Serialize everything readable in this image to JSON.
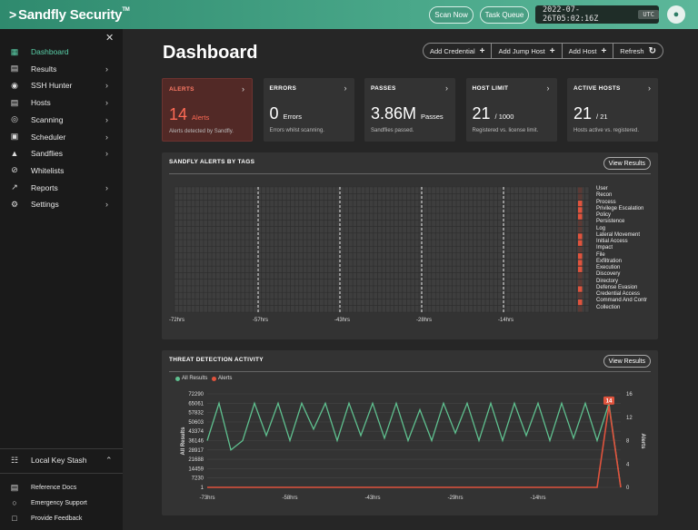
{
  "app": {
    "title": "Sandfly Security",
    "trademark": "TM"
  },
  "topbar": {
    "scan_now": "Scan Now",
    "task_queue": "Task Queue",
    "datetime": "2022-07-26T05:02:16Z",
    "tz": "UTC"
  },
  "sidebar": {
    "items": [
      {
        "label": "Dashboard",
        "icon": "dashboard-icon",
        "active": true
      },
      {
        "label": "Results",
        "icon": "results-icon"
      },
      {
        "label": "SSH Hunter",
        "icon": "ssh-hunter-icon"
      },
      {
        "label": "Hosts",
        "icon": "hosts-icon"
      },
      {
        "label": "Scanning",
        "icon": "scanning-icon"
      },
      {
        "label": "Scheduler",
        "icon": "scheduler-icon"
      },
      {
        "label": "Sandflies",
        "icon": "sandflies-icon"
      },
      {
        "label": "Whitelists",
        "icon": "whitelists-icon"
      },
      {
        "label": "Reports",
        "icon": "reports-icon"
      },
      {
        "label": "Settings",
        "icon": "settings-icon"
      }
    ],
    "key_stash": "Local Key Stash",
    "footer": [
      {
        "label": "Reference Docs",
        "icon": "docs-icon"
      },
      {
        "label": "Emergency Support",
        "icon": "support-icon"
      },
      {
        "label": "Provide Feedback",
        "icon": "feedback-icon"
      }
    ]
  },
  "main": {
    "title": "Dashboard",
    "actions": {
      "add_credential": "Add Credential",
      "add_jump_host": "Add Jump Host",
      "add_host": "Add Host",
      "refresh": "Refresh"
    },
    "cards": [
      {
        "title": "ALERTS",
        "value": "14",
        "unit": "Alerts",
        "desc": "Alerts detected by Sandfly."
      },
      {
        "title": "ERRORS",
        "value": "0",
        "unit": "Errors",
        "desc": "Errors whilst scanning."
      },
      {
        "title": "PASSES",
        "value": "3.86M",
        "unit": "Passes",
        "desc": "Sandflies passed."
      },
      {
        "title": "HOST LIMIT",
        "value": "21",
        "unit": "/ 1000",
        "desc": "Registered vs. license limit."
      },
      {
        "title": "ACTIVE HOSTS",
        "value": "21",
        "unit": "/ 21",
        "desc": "Hosts active vs. registered."
      }
    ],
    "tags_panel": {
      "title": "SANDFLY ALERTS BY TAGS",
      "button": "View Results",
      "tags": [
        "User",
        "Recon",
        "Process",
        "Privilege Escalation",
        "Policy",
        "Persistence",
        "Log",
        "Lateral Movement",
        "Initial Access",
        "Impact",
        "File",
        "Exfiltration",
        "Execution",
        "Discovery",
        "Directory",
        "Defense Evasion",
        "Credential Access",
        "Command And Contr",
        "Collection"
      ],
      "x_labels": [
        "-72hrs",
        "-57hrs",
        "-43hrs",
        "-28hrs",
        "-14hrs"
      ]
    },
    "threat_panel": {
      "title": "THREAT DETECTION ACTIVITY",
      "button": "View Results",
      "legend": [
        "All Results",
        "Alerts"
      ],
      "y_left_label": "All Results",
      "y_right_label": "Alerts",
      "y_left_ticks": [
        "72290",
        "65061",
        "57832",
        "50603",
        "43374",
        "36146",
        "28917",
        "21688",
        "14459",
        "7230",
        "1"
      ],
      "y_right_ticks": [
        "16",
        "12",
        "8",
        "4",
        "0"
      ],
      "x_labels": [
        "-73hrs",
        "-58hrs",
        "-43hrs",
        "-29hrs",
        "-14hrs"
      ],
      "peak_label": "14"
    }
  },
  "chart_data": [
    {
      "type": "heatmap",
      "title": "SANDFLY ALERTS BY TAGS",
      "x_labels": [
        "-72hrs",
        "-57hrs",
        "-43hrs",
        "-28hrs",
        "-14hrs"
      ],
      "rows": [
        "User",
        "Recon",
        "Process",
        "Privilege Escalation",
        "Policy",
        "Persistence",
        "Log",
        "Lateral Movement",
        "Initial Access",
        "Impact",
        "File",
        "Exfiltration",
        "Execution",
        "Discovery",
        "Directory",
        "Defense Evasion",
        "Credential Access",
        "Command And Contr",
        "Collection"
      ],
      "alerts_latest_column": [
        0,
        0,
        1,
        1,
        1,
        0,
        0,
        1,
        1,
        0,
        1,
        1,
        1,
        0,
        0,
        1,
        0,
        1,
        0
      ]
    },
    {
      "type": "line",
      "title": "THREAT DETECTION ACTIVITY",
      "x_labels": [
        "-73hrs",
        "-58hrs",
        "-43hrs",
        "-29hrs",
        "-14hrs"
      ],
      "series": [
        {
          "name": "All Results",
          "color": "#5fc08f",
          "values": [
            36146,
            65061,
            28917,
            36146,
            65061,
            40000,
            65061,
            36146,
            65061,
            45000,
            65061,
            36146,
            65061,
            40000,
            65061,
            38000,
            65061,
            36146,
            60000,
            36146,
            65061,
            42000,
            65061,
            36146,
            65061,
            36146,
            65061,
            40000,
            65061,
            36146,
            65061,
            38000,
            65061,
            36146,
            65061,
            1
          ]
        },
        {
          "name": "Alerts",
          "color": "#e0533d",
          "values": [
            0,
            0,
            0,
            0,
            0,
            0,
            0,
            0,
            0,
            0,
            0,
            0,
            0,
            0,
            0,
            0,
            0,
            0,
            0,
            0,
            0,
            0,
            0,
            0,
            0,
            0,
            0,
            0,
            0,
            0,
            0,
            0,
            0,
            0,
            14,
            0
          ]
        }
      ],
      "y_left_range": [
        1,
        72290
      ],
      "y_right_range": [
        0,
        16
      ]
    }
  ]
}
